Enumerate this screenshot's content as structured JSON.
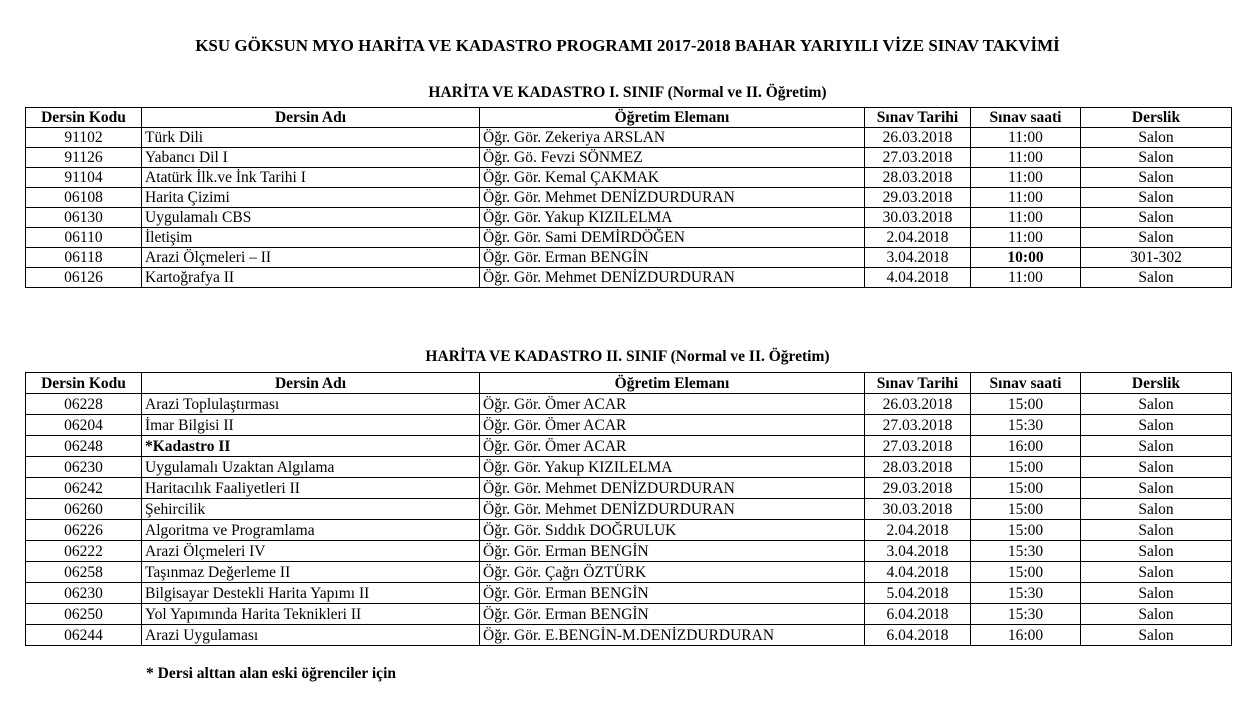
{
  "title": "KSU GÖKSUN MYO HARİTA VE KADASTRO PROGRAMI 2017-2018 BAHAR YARIYILI VİZE SINAV TAKVİMİ",
  "headers": [
    "Dersin Kodu",
    "Dersin Adı",
    "Öğretim Elemanı",
    "Sınav Tarihi",
    "Sınav saati",
    "Derslik"
  ],
  "tables": [
    {
      "subtitle": "HARİTA VE KADASTRO I. SINIF (Normal ve II. Öğretim)",
      "rows": [
        [
          "91102",
          "Türk Dili",
          "Öğr. Gör. Zekeriya ARSLAN",
          "26.03.2018",
          "11:00",
          "Salon"
        ],
        [
          "91126",
          "Yabancı Dil I",
          "Öğr. Gö.  Fevzi SÖNMEZ",
          "27.03.2018",
          "11:00",
          "Salon"
        ],
        [
          "91104",
          "Atatürk İlk.ve İnk Tarihi I",
          "Öğr. Gör. Kemal ÇAKMAK",
          "28.03.2018",
          "11:00",
          "Salon"
        ],
        [
          "06108",
          "Harita Çizimi",
          "Öğr. Gör. Mehmet DENİZDURDURAN",
          "29.03.2018",
          "11:00",
          "Salon"
        ],
        [
          "06130",
          "Uygulamalı CBS",
          "Öğr. Gör. Yakup KIZILELMA",
          "30.03.2018",
          "11:00",
          "Salon"
        ],
        [
          "06110",
          "İletişim",
          "Öğr. Gör. Sami DEMİRDÖĞEN",
          "2.04.2018",
          "11:00",
          "Salon"
        ],
        [
          "06118",
          "Arazi Ölçmeleri – II",
          "Öğr. Gör. Erman BENGİN",
          "3.04.2018",
          "10:00",
          "301-302"
        ],
        [
          "06126",
          "Kartoğrafya II",
          "Öğr. Gör. Mehmet DENİZDURDURAN",
          "4.04.2018",
          "11:00",
          "Salon"
        ]
      ]
    },
    {
      "subtitle": "HARİTA VE KADASTRO II. SINIF (Normal ve II. Öğretim)",
      "rows": [
        [
          "06228",
          "Arazi Toplulaştırması",
          "Öğr. Gör. Ömer ACAR",
          "26.03.2018",
          "15:00",
          "Salon"
        ],
        [
          "06204",
          "İmar Bilgisi II",
          "Öğr. Gör. Ömer ACAR",
          "27.03.2018",
          "15:30",
          "Salon"
        ],
        [
          "06248",
          "*Kadastro II",
          "Öğr. Gör. Ömer ACAR",
          "27.03.2018",
          "16:00",
          "Salon"
        ],
        [
          "06230",
          "Uygulamalı Uzaktan Algılama",
          "Öğr. Gör. Yakup KIZILELMA",
          "28.03.2018",
          "15:00",
          "Salon"
        ],
        [
          "06242",
          "Haritacılık Faaliyetleri II",
          "Öğr. Gör. Mehmet DENİZDURDURAN",
          "29.03.2018",
          "15:00",
          "Salon"
        ],
        [
          "06260",
          "Şehircilik",
          "Öğr. Gör. Mehmet DENİZDURDURAN",
          "30.03.2018",
          "15:00",
          "Salon"
        ],
        [
          "06226",
          "Algoritma ve Programlama",
          "Öğr. Gör. Sıddık DOĞRULUK",
          "2.04.2018",
          "15:00",
          "Salon"
        ],
        [
          "06222",
          "Arazi Ölçmeleri IV",
          "Öğr. Gör. Erman BENGİN",
          "3.04.2018",
          "15:30",
          "Salon"
        ],
        [
          "06258",
          "Taşınmaz Değerleme II",
          "Öğr. Gör. Çağrı ÖZTÜRK",
          "4.04.2018",
          "15:00",
          "Salon"
        ],
        [
          "06230",
          "Bilgisayar Destekli Harita Yapımı II",
          "Öğr. Gör. Erman BENGİN",
          "5.04.2018",
          "15:30",
          "Salon"
        ],
        [
          "06250",
          "Yol Yapımında Harita Teknikleri II",
          "Öğr. Gör. Erman BENGİN",
          "6.04.2018",
          "15:30",
          "Salon"
        ],
        [
          "06244",
          "Arazi Uygulaması",
          "Öğr. Gör. E.BENGİN-M.DENİZDURDURAN",
          "6.04.2018",
          "16:00",
          "Salon"
        ]
      ]
    }
  ],
  "footnote": "* Dersi alttan alan eski öğrenciler için"
}
